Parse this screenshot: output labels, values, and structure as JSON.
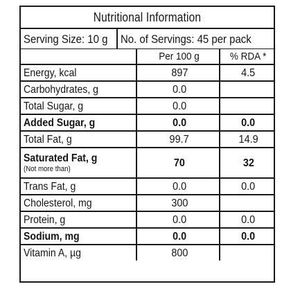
{
  "title": "Nutritional Information",
  "serving_size": "Serving Size: 10 g",
  "servings": "No. of Servings: 45 per pack",
  "col_per100": "Per 100 g",
  "col_rda": "% RDA *",
  "rows": [
    {
      "name": "Energy, kcal",
      "per100": "897",
      "rda": "4.5",
      "bold": false
    },
    {
      "name": "Carbohydrates, g",
      "per100": "0.0",
      "rda": "",
      "bold": false
    },
    {
      "name": "Total Sugar, g",
      "per100": "0.0",
      "rda": "",
      "bold": false
    },
    {
      "name": "Added Sugar, g",
      "per100": "0.0",
      "rda": "0.0",
      "bold": true
    },
    {
      "name": "Total Fat, g",
      "per100": "99.7",
      "rda": "14.9",
      "bold": false
    },
    {
      "name": "Saturated Fat, g",
      "note": "(Not more than)",
      "per100": "70",
      "rda": "32",
      "bold": true
    },
    {
      "name": "Trans Fat, g",
      "per100": "0.0",
      "rda": "0.0",
      "bold": false
    },
    {
      "name": "Cholesterol, mg",
      "per100": "300",
      "rda": "",
      "bold": false
    },
    {
      "name": "Protein, g",
      "per100": "0.0",
      "rda": "0.0",
      "bold": false
    },
    {
      "name": "Sodium, mg",
      "per100": "0.0",
      "rda": "0.0",
      "bold": true
    },
    {
      "name": "Vitamin A, µg",
      "per100": "800",
      "rda": "",
      "bold": false
    }
  ]
}
